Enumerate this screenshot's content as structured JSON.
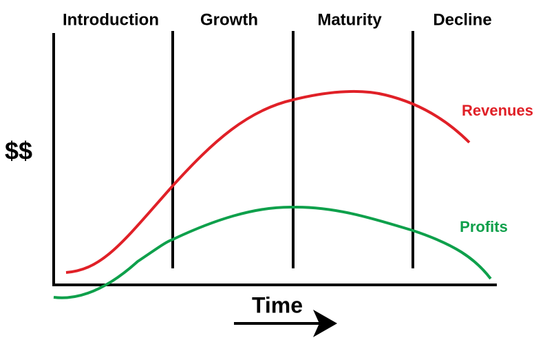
{
  "stages": [
    "Introduction",
    "Growth",
    "Maturity",
    "Decline"
  ],
  "y_axis_label": "$$",
  "x_axis_label": "Time",
  "curves": {
    "revenues": "Revenues",
    "profits": "Profits"
  }
}
